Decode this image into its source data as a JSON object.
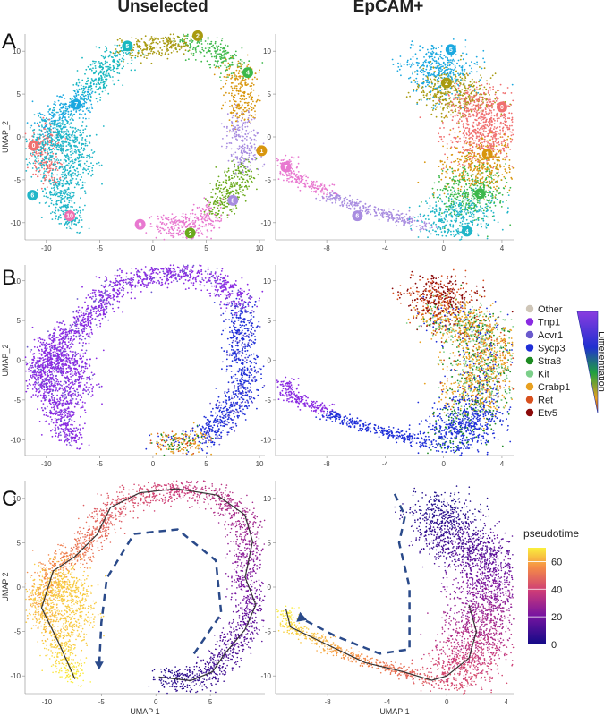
{
  "columns": [
    "Unselected",
    "EpCAM+"
  ],
  "panels": [
    "A",
    "B",
    "C"
  ],
  "chart_data": [
    {
      "type": "scatter",
      "panel": "A",
      "id": "A-unselected",
      "title": "",
      "xlabel": "",
      "ylabel": "UMAP_2",
      "xticks": [
        -10,
        -5,
        0,
        5,
        10
      ],
      "yticks": [
        -10,
        -5,
        0,
        5,
        10
      ],
      "xlim": [
        -12,
        10.5
      ],
      "ylim": [
        -12,
        12
      ],
      "clusters": [
        {
          "label": "0",
          "x": -11.2,
          "y": -1,
          "color": "#f07070"
        },
        {
          "label": "7",
          "x": -7.2,
          "y": 3.8,
          "color": "#1aa8e0"
        },
        {
          "label": "5",
          "x": -2.4,
          "y": 10.6,
          "color": "#19b8c0"
        },
        {
          "label": "2",
          "x": 4.2,
          "y": 11.8,
          "color": "#a89a10"
        },
        {
          "label": "4",
          "x": 8.9,
          "y": 7.5,
          "color": "#3cb84a"
        },
        {
          "label": "1",
          "x": 10.2,
          "y": -1.6,
          "color": "#d8960e"
        },
        {
          "label": "8",
          "x": 7.5,
          "y": -7.4,
          "color": "#a88ce0"
        },
        {
          "label": "3",
          "x": 3.5,
          "y": -11.2,
          "color": "#6aaa1c"
        },
        {
          "label": "9",
          "x": -1.2,
          "y": -10.2,
          "color": "#e878d0"
        },
        {
          "label": "10",
          "x": -7.8,
          "y": -9.2,
          "color": "#f06eb0"
        },
        {
          "label": "6",
          "x": -11.3,
          "y": -6.8,
          "color": "#21b6c8"
        }
      ]
    },
    {
      "type": "scatter",
      "panel": "A",
      "id": "A-epcam",
      "title": "",
      "xlabel": "",
      "ylabel": "",
      "xticks": [
        -8,
        -4,
        0,
        4
      ],
      "yticks": [
        -10,
        -5,
        0,
        5,
        10
      ],
      "xlim": [
        -11.5,
        4.8
      ],
      "ylim": [
        -12,
        12
      ],
      "clusters": [
        {
          "label": "5",
          "x": 0.5,
          "y": 10.2,
          "color": "#1aa8e0"
        },
        {
          "label": "2",
          "x": 0.2,
          "y": 6.3,
          "color": "#a89a10"
        },
        {
          "label": "0",
          "x": 4.0,
          "y": 3.5,
          "color": "#f07070"
        },
        {
          "label": "1",
          "x": 3.0,
          "y": -2.0,
          "color": "#d8960e"
        },
        {
          "label": "3",
          "x": 2.5,
          "y": -6.6,
          "color": "#3cb84a"
        },
        {
          "label": "4",
          "x": 1.6,
          "y": -11.0,
          "color": "#21b6c8"
        },
        {
          "label": "6",
          "x": -5.9,
          "y": -9.2,
          "color": "#a88ce0"
        },
        {
          "label": "7",
          "x": -10.8,
          "y": -3.5,
          "color": "#e878d0"
        }
      ]
    },
    {
      "type": "scatter",
      "panel": "B",
      "id": "B-unselected",
      "title": "",
      "xlabel": "",
      "ylabel": "UMAP_2",
      "xticks": [
        -10,
        -5,
        0,
        5,
        10
      ],
      "yticks": [
        -10,
        -5,
        0,
        5,
        10
      ],
      "xlim": [
        -12,
        10.5
      ],
      "ylim": [
        -12,
        12
      ]
    },
    {
      "type": "scatter",
      "panel": "B",
      "id": "B-epcam",
      "title": "",
      "xlabel": "",
      "ylabel": "",
      "xticks": [
        -8,
        -4,
        0,
        4
      ],
      "yticks": [
        -10,
        -5,
        0,
        5,
        10
      ],
      "xlim": [
        -11.5,
        4.8
      ],
      "ylim": [
        -12,
        12
      ]
    },
    {
      "type": "scatter",
      "panel": "C",
      "id": "C-unselected",
      "title": "",
      "xlabel": "UMAP 1",
      "ylabel": "UMAP 2",
      "xticks": [
        -10,
        -5,
        0,
        5
      ],
      "yticks": [
        -10,
        -5,
        0,
        5,
        10
      ],
      "xlim": [
        -12,
        10
      ],
      "ylim": [
        -12,
        12
      ]
    },
    {
      "type": "scatter",
      "panel": "C",
      "id": "C-epcam",
      "title": "",
      "xlabel": "UMAP 1",
      "ylabel": "",
      "xticks": [
        -8,
        -4,
        0,
        4
      ],
      "yticks": [
        -10,
        -5,
        0,
        5,
        10
      ],
      "xlim": [
        -11.5,
        4.5
      ],
      "ylim": [
        -12,
        12
      ]
    }
  ],
  "legend_markers": {
    "title": "",
    "position": "right",
    "entries": [
      {
        "name": "Other",
        "color": "#cfc6b8"
      },
      {
        "name": "Tnp1",
        "color": "#8a2be2"
      },
      {
        "name": "Acvr1",
        "color": "#6a5acd"
      },
      {
        "name": "Sycp3",
        "color": "#1f2fd8"
      },
      {
        "name": "Stra8",
        "color": "#1e8b22"
      },
      {
        "name": "Kit",
        "color": "#7ccf8a"
      },
      {
        "name": "Crabp1",
        "color": "#e8a020"
      },
      {
        "name": "Ret",
        "color": "#d8501e"
      },
      {
        "name": "Etv5",
        "color": "#8b0a0a"
      }
    ],
    "gradient_label": "Differentiation"
  },
  "legend_pseudotime": {
    "title": "pseudotime",
    "ticks": [
      60,
      40,
      20,
      0
    ],
    "range": [
      0,
      70
    ]
  }
}
